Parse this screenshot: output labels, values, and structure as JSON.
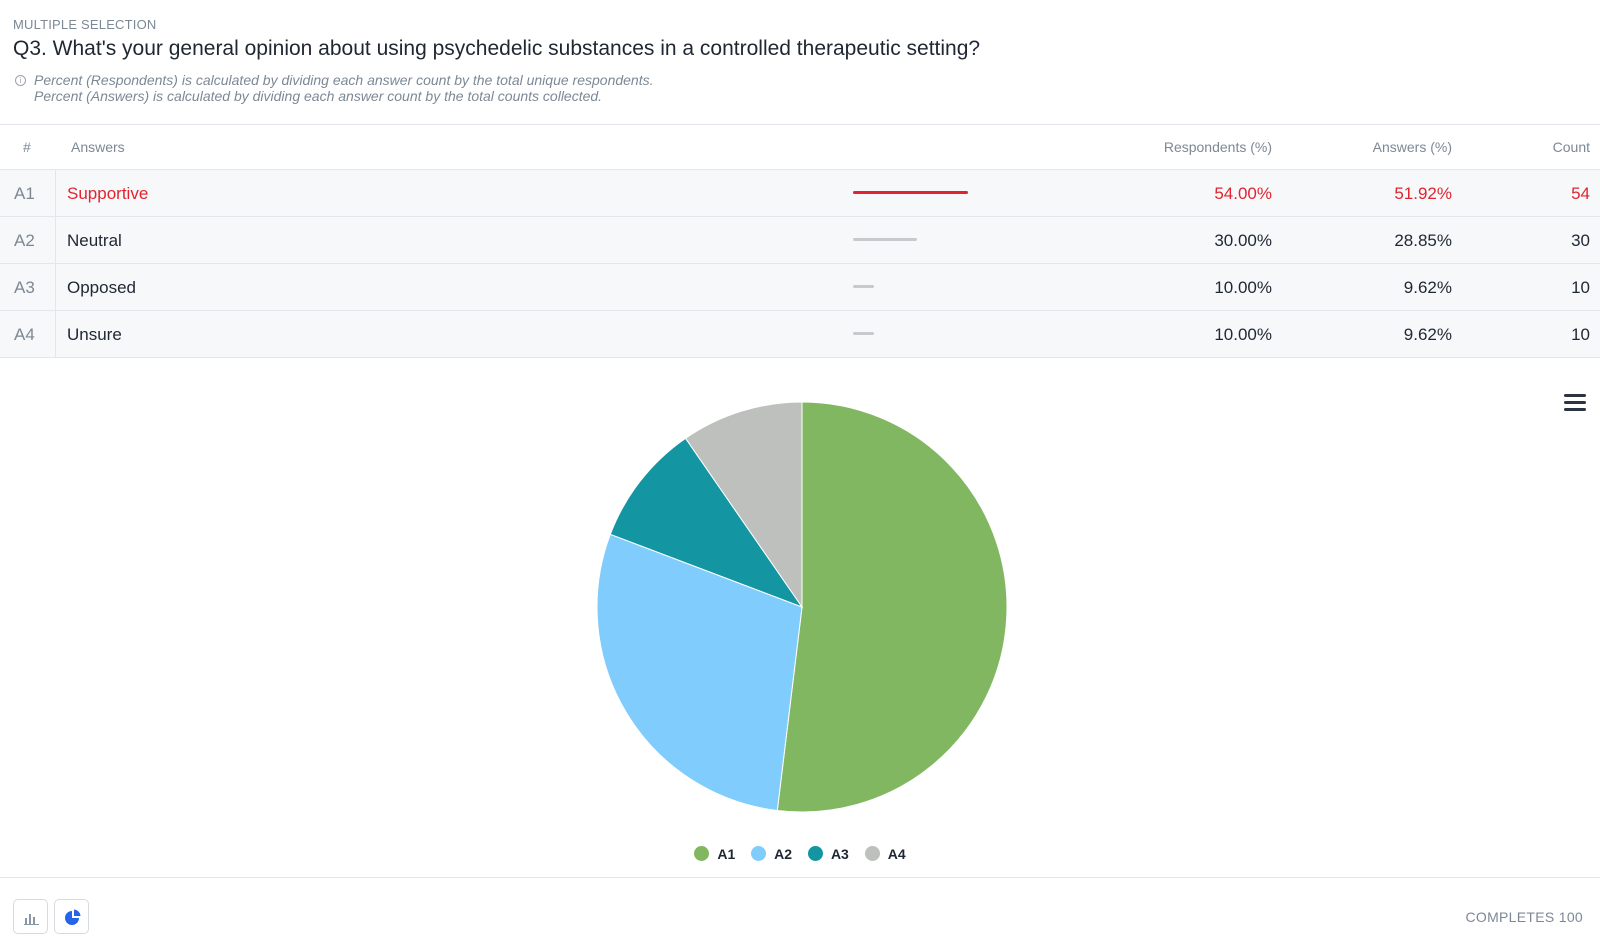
{
  "question": {
    "type_label": "MULTIPLE SELECTION",
    "title": "Q3. What's your general opinion about using psychedelic substances in a controlled therapeutic setting?",
    "notes": [
      "Percent (Respondents) is calculated by dividing each answer count by the total unique respondents.",
      "Percent (Answers) is calculated by dividing each answer count by the total counts collected."
    ]
  },
  "table": {
    "headers": {
      "id": "#",
      "answers": "Answers",
      "respondents": "Respondents (%)",
      "answers_pct": "Answers (%)",
      "count": "Count"
    },
    "rows": [
      {
        "id": "A1",
        "label": "Supportive",
        "respondents": "54.00%",
        "answers": "51.92%",
        "count": "54"
      },
      {
        "id": "A2",
        "label": "Neutral",
        "respondents": "30.00%",
        "answers": "28.85%",
        "count": "30"
      },
      {
        "id": "A3",
        "label": "Opposed",
        "respondents": "10.00%",
        "answers": "9.62%",
        "count": "10"
      },
      {
        "id": "A4",
        "label": "Unsure",
        "respondents": "10.00%",
        "answers": "9.62%",
        "count": "10"
      }
    ]
  },
  "chart_data": {
    "type": "pie",
    "categories": [
      "A1",
      "A2",
      "A3",
      "A4"
    ],
    "values": [
      54,
      30,
      10,
      10
    ],
    "colors": [
      "#82b762",
      "#80ccfc",
      "#1395a2",
      "#bdc0bd"
    ],
    "legend": "bottom-center"
  },
  "footer": {
    "completes_label": "COMPLETES",
    "completes_value": "100"
  },
  "icons": {
    "menu": "hamburger-menu-icon",
    "bar_chart": "bar-chart-icon",
    "pie_chart": "pie-chart-icon",
    "info": "info-icon"
  },
  "colors": {
    "highlight": "#e0242f",
    "accent": "#2563eb"
  }
}
